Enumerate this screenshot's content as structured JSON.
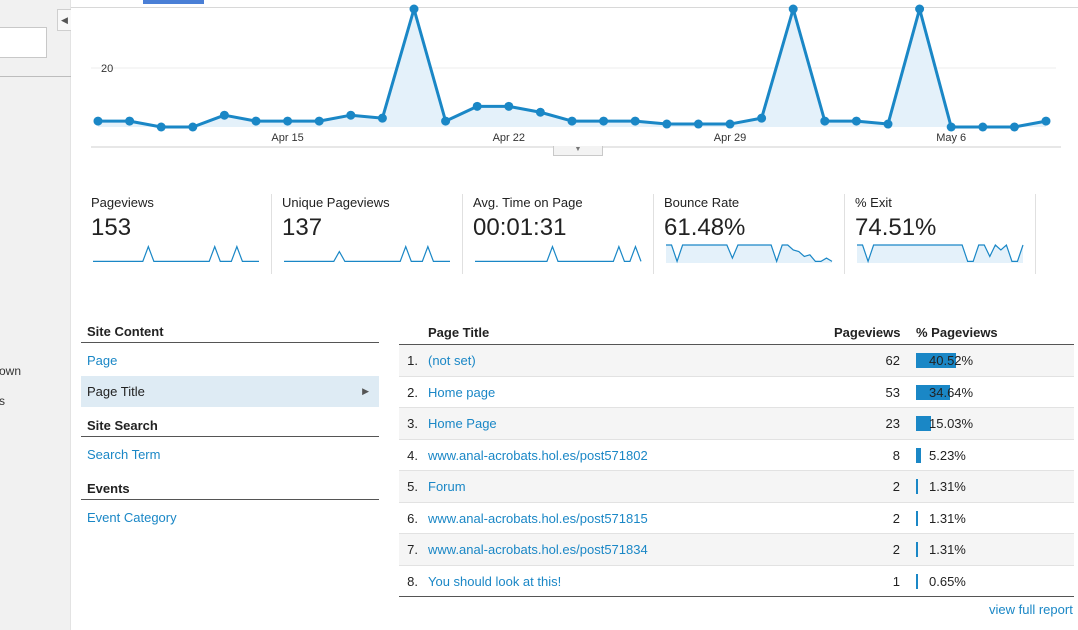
{
  "sidebar": {
    "fragments": [
      "own",
      "s"
    ]
  },
  "chart_data": {
    "type": "area",
    "x_tick_labels": [
      "Apr 15",
      "Apr 22",
      "Apr 29",
      "May 6"
    ],
    "y_tick_labels": [
      "20"
    ],
    "series": [
      {
        "values": [
          2,
          2,
          0,
          0,
          4,
          2,
          2,
          2,
          4,
          3,
          40,
          2,
          7,
          7,
          5,
          2,
          2,
          2,
          1,
          1,
          1,
          3,
          40,
          2,
          2,
          1,
          40,
          0,
          0,
          0,
          2
        ]
      }
    ],
    "colors": {
      "line": "#1a87c6",
      "fill": "#e4f1fa"
    }
  },
  "metrics": [
    {
      "label": "Pageviews",
      "value": "153",
      "spark": [
        1,
        1,
        1,
        1,
        1,
        1,
        1,
        1,
        1,
        1,
        10,
        1,
        1,
        1,
        1,
        1,
        1,
        1,
        1,
        1,
        1,
        1,
        10,
        1,
        1,
        1,
        10,
        1,
        1,
        1,
        1
      ],
      "fill": false
    },
    {
      "label": "Unique Pageviews",
      "value": "137",
      "spark": [
        1,
        1,
        1,
        1,
        1,
        1,
        1,
        1,
        1,
        1,
        7,
        1,
        1,
        1,
        1,
        1,
        1,
        1,
        1,
        1,
        1,
        1,
        10,
        1,
        1,
        1,
        10,
        1,
        1,
        1,
        1
      ],
      "fill": false
    },
    {
      "label": "Avg. Time on Page",
      "value": "00:01:31",
      "spark": [
        1,
        1,
        1,
        1,
        1,
        1,
        1,
        1,
        1,
        1,
        1,
        1,
        1,
        1,
        10,
        1,
        1,
        1,
        1,
        1,
        1,
        1,
        1,
        1,
        1,
        1,
        10,
        1,
        1,
        10,
        1
      ],
      "fill": false
    },
    {
      "label": "Bounce Rate",
      "value": "61.48%",
      "spark": [
        11,
        11,
        1,
        11,
        11,
        11,
        11,
        11,
        11,
        11,
        11,
        11,
        3,
        11,
        11,
        11,
        11,
        11,
        11,
        11,
        1,
        11,
        11,
        8,
        7,
        4,
        5,
        1,
        1,
        3,
        1
      ],
      "fill": true
    },
    {
      "label": "% Exit",
      "value": "74.51%",
      "spark": [
        11,
        11,
        1,
        11,
        11,
        11,
        11,
        11,
        11,
        11,
        11,
        11,
        11,
        11,
        11,
        11,
        11,
        11,
        11,
        11,
        1,
        1,
        11,
        11,
        4,
        11,
        8,
        11,
        1,
        1,
        11
      ],
      "fill": true
    }
  ],
  "leftnav": {
    "site_content": "Site Content",
    "page": "Page",
    "page_title": "Page Title",
    "site_search": "Site Search",
    "search_term": "Search Term",
    "events": "Events",
    "event_category": "Event Category"
  },
  "table": {
    "headers": {
      "title": "Page Title",
      "pageviews": "Pageviews",
      "pct": "% Pageviews"
    },
    "rows": [
      {
        "idx": "1.",
        "title": "(not set)",
        "pageviews": "62",
        "pct": "40.52%",
        "share": 40.52
      },
      {
        "idx": "2.",
        "title": "Home page",
        "pageviews": "53",
        "pct": "34.64%",
        "share": 34.64
      },
      {
        "idx": "3.",
        "title": "Home Page",
        "pageviews": "23",
        "pct": "15.03%",
        "share": 15.03
      },
      {
        "idx": "4.",
        "title": "www.anal-acrobats.hol.es/post571802",
        "pageviews": "8",
        "pct": "5.23%",
        "share": 5.23
      },
      {
        "idx": "5.",
        "title": "Forum",
        "pageviews": "2",
        "pct": "1.31%",
        "share": 1.31
      },
      {
        "idx": "6.",
        "title": "www.anal-acrobats.hol.es/post571815",
        "pageviews": "2",
        "pct": "1.31%",
        "share": 1.31
      },
      {
        "idx": "7.",
        "title": "www.anal-acrobats.hol.es/post571834",
        "pageviews": "2",
        "pct": "1.31%",
        "share": 1.31
      },
      {
        "idx": "8.",
        "title": "You should look at this!",
        "pageviews": "1",
        "pct": "0.65%",
        "share": 0.65
      }
    ],
    "view_full_report": "view full report"
  }
}
